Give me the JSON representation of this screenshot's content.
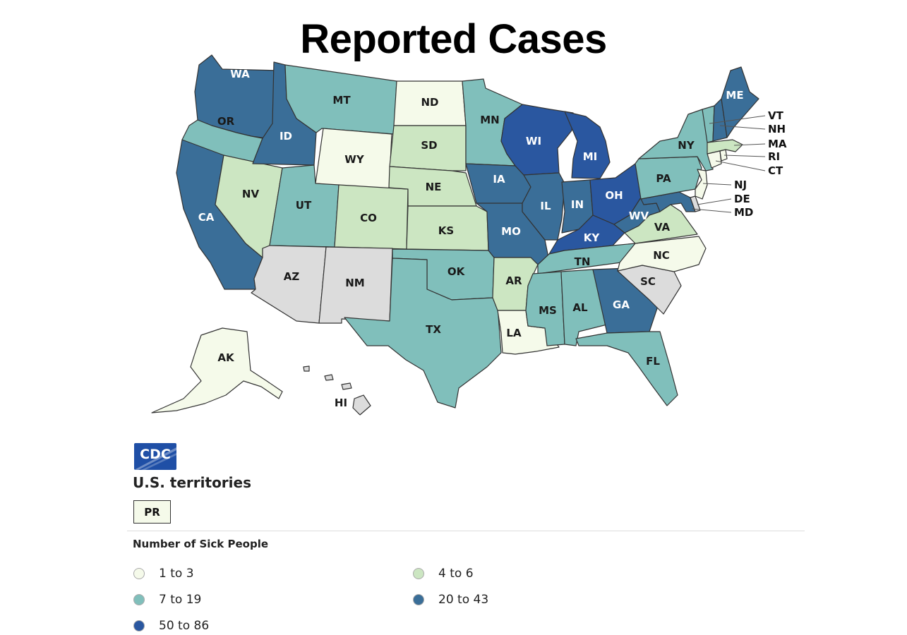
{
  "title": "Reported Cases",
  "legend": {
    "title": "Number of Sick People",
    "items": [
      {
        "label": "1 to 3",
        "color": "#f5faea"
      },
      {
        "label": "4 to 6",
        "color": "#cce6c2"
      },
      {
        "label": "7 to 19",
        "color": "#80bfbb"
      },
      {
        "label": "20 to 43",
        "color": "#3a6e98"
      },
      {
        "label": "50 to 86",
        "color": "#2a57a0"
      }
    ],
    "no_data_color": "#dcdcdc"
  },
  "territories": {
    "title": "U.S. territories",
    "items": [
      {
        "label": "PR",
        "bin": 0
      }
    ]
  },
  "logo": {
    "text": "CDC"
  },
  "states": {
    "WA": 3,
    "OR": 2,
    "CA": 3,
    "NV": 1,
    "ID": 3,
    "MT": 2,
    "WY": 0,
    "UT": 2,
    "AZ": null,
    "CO": 1,
    "NM": null,
    "ND": 0,
    "SD": 1,
    "NE": 1,
    "KS": 1,
    "OK": 2,
    "TX": 2,
    "MN": 2,
    "IA": 3,
    "MO": 3,
    "AR": 1,
    "LA": 0,
    "WI": 4,
    "IL": 3,
    "MI": 4,
    "IN": 3,
    "OH": 4,
    "KY": 4,
    "TN": 2,
    "MS": 2,
    "AL": 2,
    "GA": 3,
    "FL": 2,
    "SC": null,
    "NC": 0,
    "VA": 1,
    "WV": 3,
    "PA": 2,
    "NY": 2,
    "ME": 3,
    "VT": 2,
    "NH": 3,
    "MA": 1,
    "RI": 0,
    "CT": 0,
    "NJ": 0,
    "DE": null,
    "MD": 3,
    "AK": 0,
    "HI": null
  },
  "labels": {
    "WA": "WA",
    "OR": "OR",
    "CA": "CA",
    "NV": "NV",
    "ID": "ID",
    "MT": "MT",
    "WY": "WY",
    "UT": "UT",
    "AZ": "AZ",
    "CO": "CO",
    "NM": "NM",
    "ND": "ND",
    "SD": "SD",
    "NE": "NE",
    "KS": "KS",
    "OK": "OK",
    "TX": "TX",
    "MN": "MN",
    "IA": "IA",
    "MO": "MO",
    "AR": "AR",
    "LA": "LA",
    "WI": "WI",
    "IL": "IL",
    "MI": "MI",
    "IN": "IN",
    "OH": "OH",
    "KY": "KY",
    "TN": "TN",
    "MS": "MS",
    "AL": "AL",
    "GA": "GA",
    "FL": "FL",
    "SC": "SC",
    "NC": "NC",
    "VA": "VA",
    "WV": "WV",
    "PA": "PA",
    "NY": "NY",
    "ME": "ME",
    "AK": "AK",
    "HI": "HI",
    "VT": "VT",
    "NH": "NH",
    "MA": "MA",
    "RI": "RI",
    "CT": "CT",
    "NJ": "NJ",
    "DE": "DE",
    "MD": "MD"
  }
}
